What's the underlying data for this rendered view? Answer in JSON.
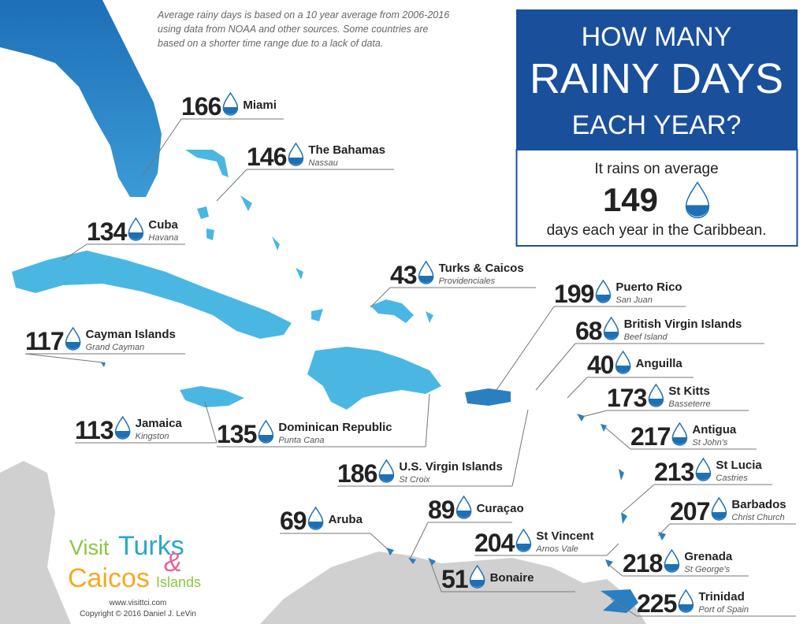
{
  "note": [
    "Average rainy days is based on a 10 year average from 2006-2016",
    "using data from NOAA and other sources. Some countries are",
    "based on a shorter time range due to a lack of data."
  ],
  "header": {
    "title": [
      "HOW MANY",
      "RAINY DAYS",
      "EACH YEAR?"
    ]
  },
  "summary": {
    "before": "It rains on average",
    "value": 149,
    "after": "days each year in the Caribbean."
  },
  "locations": [
    {
      "value": 166,
      "name": "Miami"
    },
    {
      "value": 146,
      "name": "The Bahamas",
      "city": "Nassau"
    },
    {
      "value": 134,
      "name": "Cuba",
      "city": "Havana"
    },
    {
      "value": 43,
      "name": "Turks & Caicos",
      "city": "Providenciales"
    },
    {
      "value": 199,
      "name": "Puerto Rico",
      "city": "San Juan"
    },
    {
      "value": 68,
      "name": "British Virgin Islands",
      "city": "Beef Island"
    },
    {
      "value": 117,
      "name": "Cayman Islands",
      "city": "Grand Cayman"
    },
    {
      "value": 40,
      "name": "Anguilla"
    },
    {
      "value": 173,
      "name": "St Kitts",
      "city": "Basseterre"
    },
    {
      "value": 217,
      "name": "Antigua",
      "city": "St John's"
    },
    {
      "value": 113,
      "name": "Jamaica",
      "city": "Kingston"
    },
    {
      "value": 135,
      "name": "Dominican Republic",
      "city": "Punta Cana"
    },
    {
      "value": 213,
      "name": "St Lucia",
      "city": "Castries"
    },
    {
      "value": 186,
      "name": "U.S. Virgin Islands",
      "city": "St Croix"
    },
    {
      "value": 207,
      "name": "Barbados",
      "city": "Christ Church"
    },
    {
      "value": 69,
      "name": "Aruba"
    },
    {
      "value": 89,
      "name": "Curaçao"
    },
    {
      "value": 204,
      "name": "St Vincent",
      "city": "Arnos Vale"
    },
    {
      "value": 218,
      "name": "Grenada",
      "city": "St George's"
    },
    {
      "value": 51,
      "name": "Bonaire"
    },
    {
      "value": 225,
      "name": "Trinidad",
      "city": "Port of Spain"
    }
  ],
  "logo": {
    "visit": "Visit",
    "turks": "Turks",
    "amp": "&",
    "caicos": "Caicos",
    "islands": "Islands"
  },
  "footer": {
    "website": "www.visittci.com",
    "copyright": "Copyright © 2016 Daniel J. LeVin"
  }
}
